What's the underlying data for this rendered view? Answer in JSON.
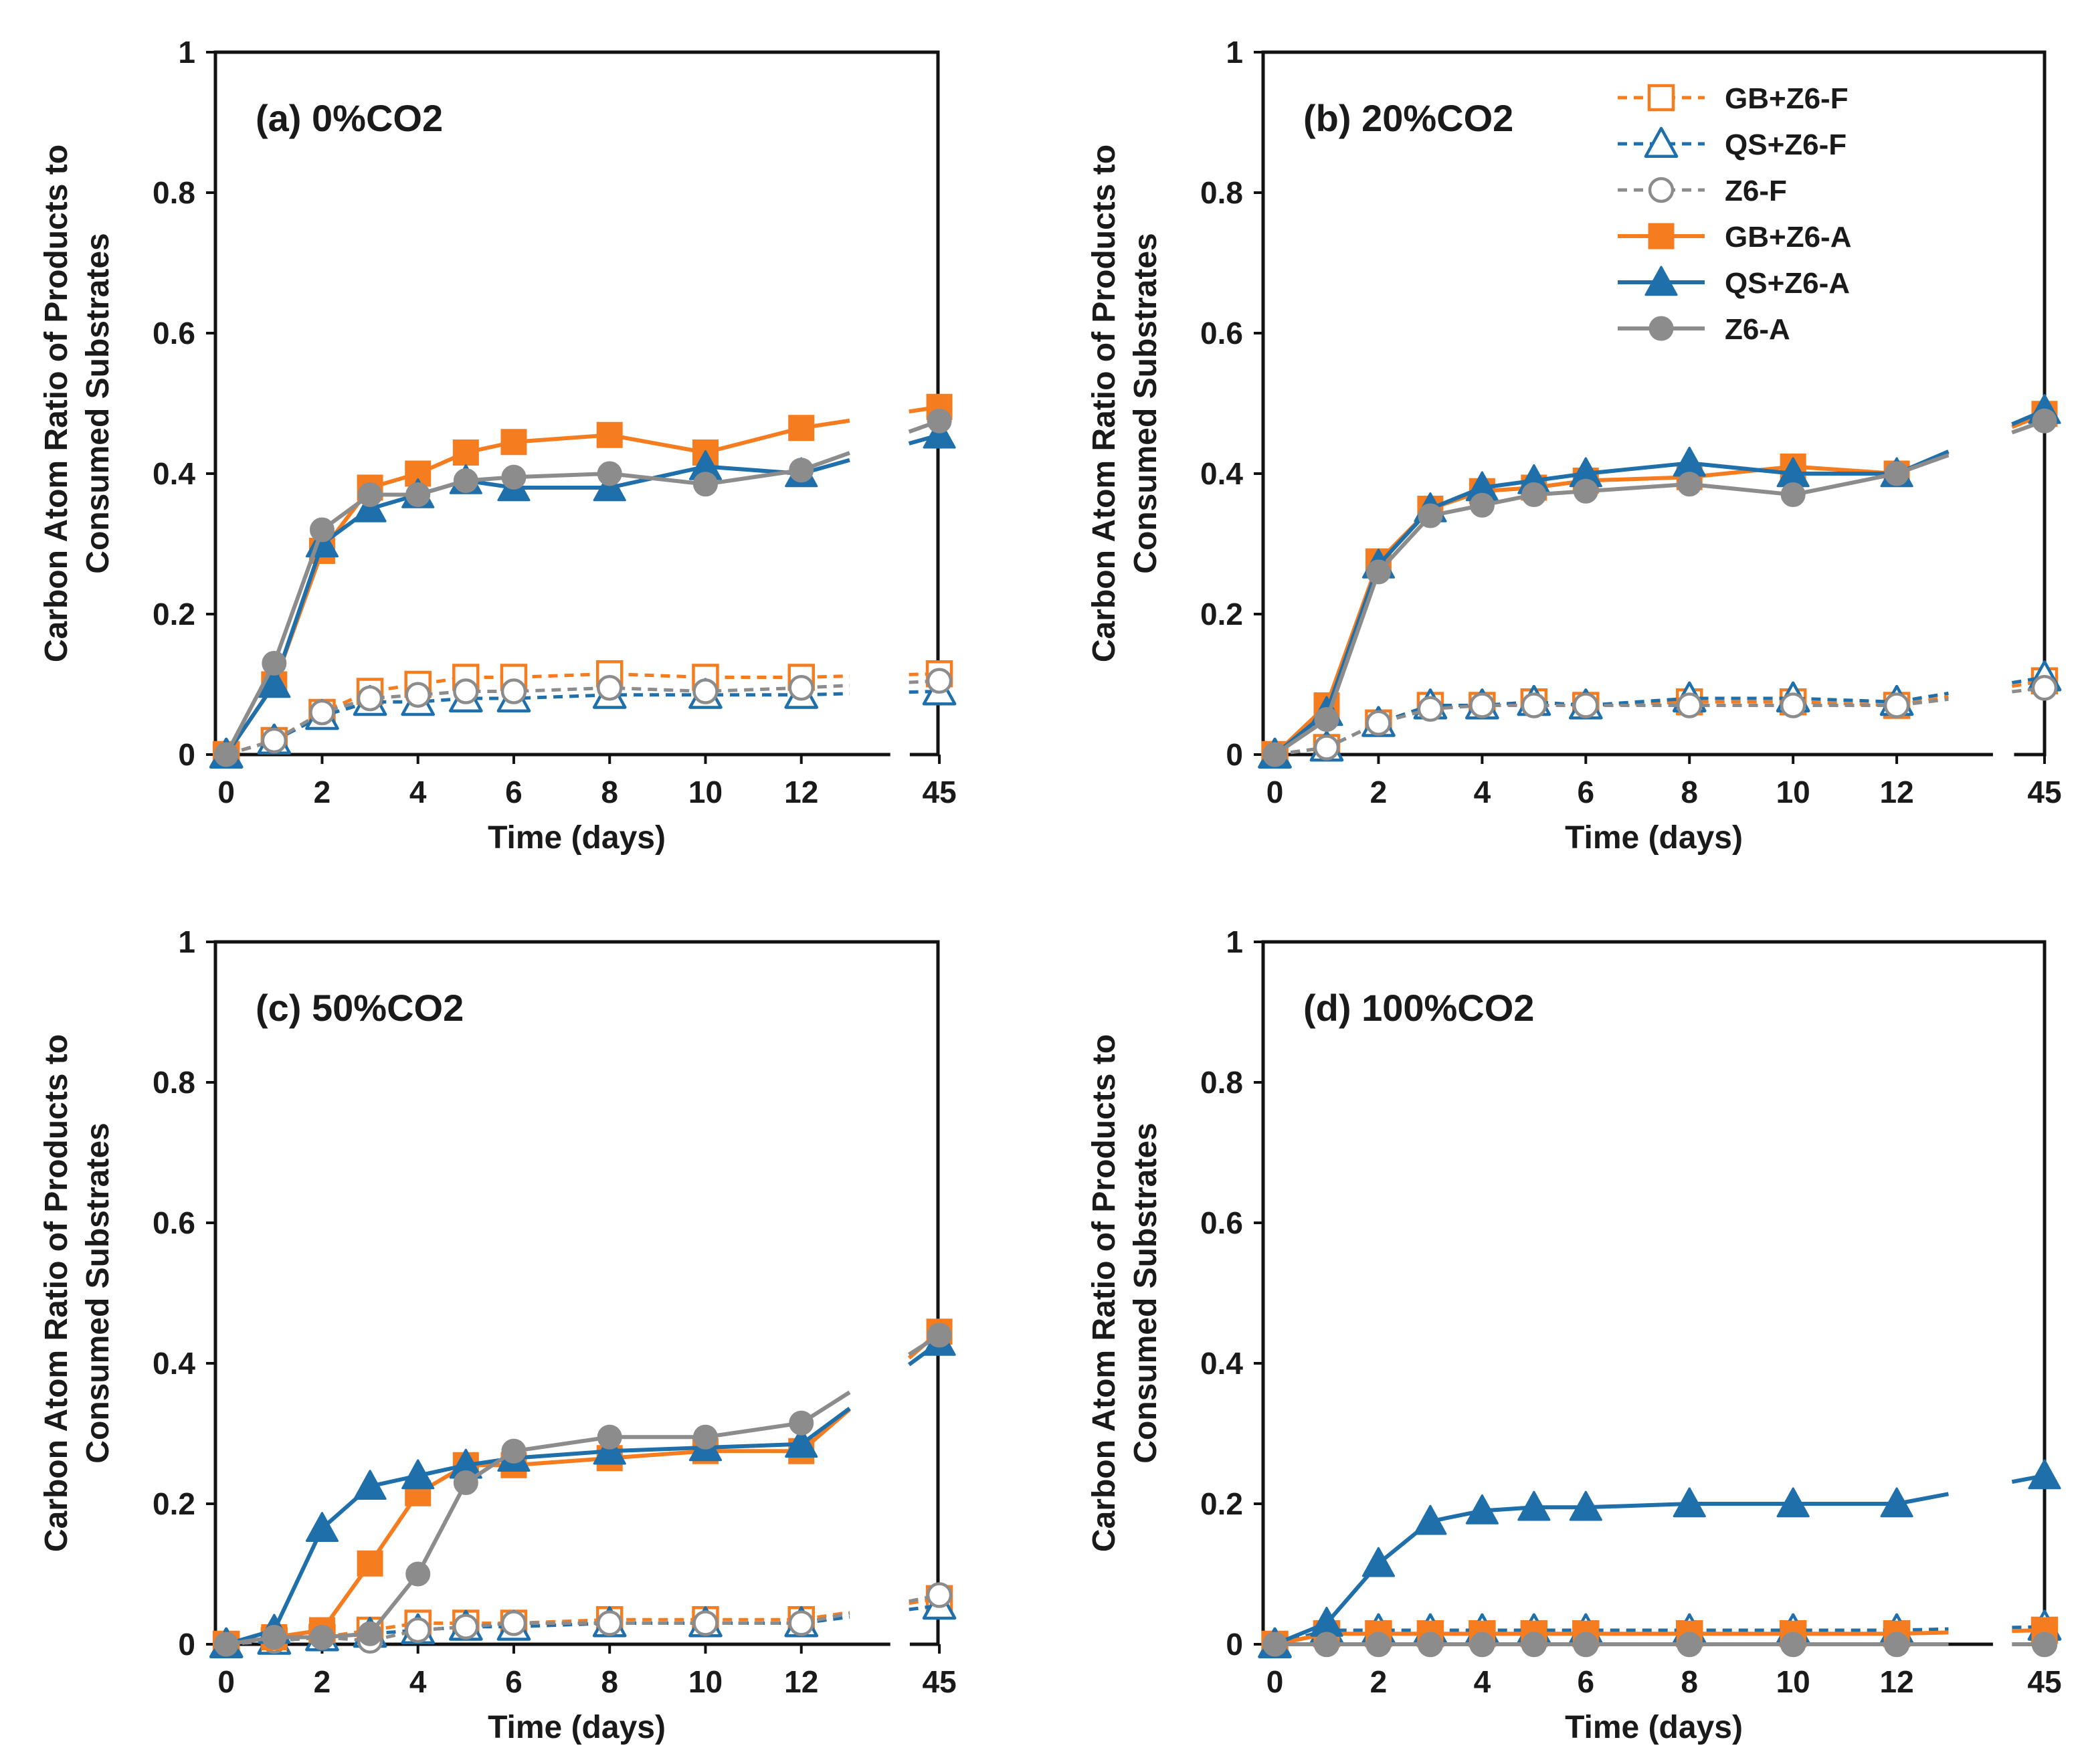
{
  "figure": {
    "colors": {
      "orange": "#F57D20",
      "blue": "#1F6FAA",
      "gray": "#8C8C8C"
    },
    "legend": [
      {
        "label": "GB+Z6-F",
        "series_key": "gbf",
        "color": "orange",
        "dashed": true,
        "marker": "square",
        "filled": false
      },
      {
        "label": "QS+Z6-F",
        "series_key": "qsf",
        "color": "blue",
        "dashed": true,
        "marker": "triangle",
        "filled": false
      },
      {
        "label": "Z6-F",
        "series_key": "z6f",
        "color": "gray",
        "dashed": true,
        "marker": "circle",
        "filled": false
      },
      {
        "label": "GB+Z6-A",
        "series_key": "gba",
        "color": "orange",
        "dashed": false,
        "marker": "square",
        "filled": true
      },
      {
        "label": "QS+Z6-A",
        "series_key": "qsa",
        "color": "blue",
        "dashed": false,
        "marker": "triangle",
        "filled": true
      },
      {
        "label": "Z6-A",
        "series_key": "z6a",
        "color": "gray",
        "dashed": false,
        "marker": "circle",
        "filled": true
      }
    ]
  },
  "chart_data": [
    {
      "type": "line",
      "title": "(a) 0%CO2",
      "xlabel": "Time (days)",
      "ylabel": [
        "Carbon Atom Ratio of Products to",
        "Consumed Substrates"
      ],
      "ylim": [
        0,
        1
      ],
      "yticks": [
        "0",
        "0.2",
        "0.4",
        "0.6",
        "0.8",
        "1"
      ],
      "x": [
        0,
        1,
        2,
        3,
        4,
        5,
        6,
        8,
        10,
        12,
        45
      ],
      "xticks": [
        "0",
        "2",
        "4",
        "6",
        "8",
        "10",
        "12",
        "45"
      ],
      "legend_position": "top-right",
      "series": [
        {
          "key": "gbf",
          "name": "GB+Z6-F",
          "values": [
            0,
            0.02,
            0.06,
            0.09,
            0.1,
            0.11,
            0.11,
            0.115,
            0.11,
            0.11,
            0.115
          ]
        },
        {
          "key": "qsf",
          "name": "QS+Z6-F",
          "values": [
            0,
            0.02,
            0.055,
            0.075,
            0.075,
            0.08,
            0.08,
            0.085,
            0.085,
            0.085,
            0.09
          ]
        },
        {
          "key": "z6f",
          "name": "Z6-F",
          "values": [
            0,
            0.02,
            0.06,
            0.08,
            0.085,
            0.09,
            0.09,
            0.095,
            0.09,
            0.095,
            0.105
          ]
        },
        {
          "key": "gba",
          "name": "GB+Z6-A",
          "values": [
            0,
            0.1,
            0.29,
            0.38,
            0.4,
            0.43,
            0.445,
            0.455,
            0.43,
            0.465,
            0.495
          ]
        },
        {
          "key": "qsa",
          "name": "QS+Z6-A",
          "values": [
            0,
            0.1,
            0.3,
            0.35,
            0.37,
            0.39,
            0.38,
            0.38,
            0.41,
            0.4,
            0.455
          ]
        },
        {
          "key": "z6a",
          "name": "Z6-A",
          "values": [
            0,
            0.13,
            0.32,
            0.37,
            0.37,
            0.39,
            0.395,
            0.4,
            0.385,
            0.405,
            0.475
          ]
        }
      ]
    },
    {
      "type": "line",
      "title": "(b) 20%CO2",
      "xlabel": "Time (days)",
      "ylabel": [
        "Carbon Atom Ratio of Products to",
        "Consumed Substrates"
      ],
      "ylim": [
        0,
        1
      ],
      "yticks": [
        "0",
        "0.2",
        "0.4",
        "0.6",
        "0.8",
        "1"
      ],
      "x": [
        0,
        1,
        2,
        3,
        4,
        5,
        6,
        8,
        10,
        12,
        45
      ],
      "xticks": [
        "0",
        "2",
        "4",
        "6",
        "8",
        "10",
        "12",
        "45"
      ],
      "legend_position": "top-right",
      "series": [
        {
          "key": "gbf",
          "name": "GB+Z6-F",
          "values": [
            0,
            0.01,
            0.045,
            0.07,
            0.07,
            0.075,
            0.07,
            0.075,
            0.075,
            0.07,
            0.105
          ]
        },
        {
          "key": "qsf",
          "name": "QS+Z6-F",
          "values": [
            0,
            0.01,
            0.045,
            0.07,
            0.07,
            0.075,
            0.07,
            0.08,
            0.08,
            0.075,
            0.11
          ]
        },
        {
          "key": "z6f",
          "name": "Z6-F",
          "values": [
            0,
            0.01,
            0.045,
            0.065,
            0.07,
            0.07,
            0.07,
            0.07,
            0.07,
            0.07,
            0.095
          ]
        },
        {
          "key": "gba",
          "name": "GB+Z6-A",
          "values": [
            0,
            0.07,
            0.275,
            0.35,
            0.375,
            0.38,
            0.39,
            0.395,
            0.41,
            0.4,
            0.485
          ]
        },
        {
          "key": "qsa",
          "name": "QS+Z6-A",
          "values": [
            0,
            0.06,
            0.27,
            0.35,
            0.38,
            0.39,
            0.4,
            0.415,
            0.4,
            0.4,
            0.49
          ]
        },
        {
          "key": "z6a",
          "name": "Z6-A",
          "values": [
            0,
            0.05,
            0.26,
            0.34,
            0.355,
            0.37,
            0.375,
            0.385,
            0.37,
            0.4,
            0.475
          ]
        }
      ]
    },
    {
      "type": "line",
      "title": "(c) 50%CO2",
      "xlabel": "Time (days)",
      "ylabel": [
        "Carbon Atom Ratio of Products to",
        "Consumed Substrates"
      ],
      "ylim": [
        0,
        1
      ],
      "yticks": [
        "0",
        "0.2",
        "0.4",
        "0.6",
        "0.8",
        "1"
      ],
      "x": [
        0,
        1,
        2,
        3,
        4,
        5,
        6,
        8,
        10,
        12,
        45
      ],
      "xticks": [
        "0",
        "2",
        "4",
        "6",
        "8",
        "10",
        "12",
        "45"
      ],
      "legend_position": "none",
      "series": [
        {
          "key": "gbf",
          "name": "GB+Z6-F",
          "values": [
            0,
            0.005,
            0.01,
            0.02,
            0.03,
            0.03,
            0.03,
            0.035,
            0.035,
            0.035,
            0.065
          ]
        },
        {
          "key": "qsf",
          "name": "QS+Z6-F",
          "values": [
            0,
            0.005,
            0.01,
            0.015,
            0.02,
            0.025,
            0.025,
            0.03,
            0.03,
            0.03,
            0.055
          ]
        },
        {
          "key": "z6f",
          "name": "Z6-F",
          "values": [
            0,
            0.005,
            0.01,
            0.005,
            0.02,
            0.025,
            0.03,
            0.03,
            0.03,
            0.03,
            0.07
          ]
        },
        {
          "key": "gba",
          "name": "GB+Z6-A",
          "values": [
            0,
            0.01,
            0.02,
            0.115,
            0.215,
            0.255,
            0.255,
            0.265,
            0.275,
            0.275,
            0.445
          ]
        },
        {
          "key": "qsa",
          "name": "QS+Z6-A",
          "values": [
            0,
            0.02,
            0.165,
            0.225,
            0.24,
            0.255,
            0.265,
            0.275,
            0.28,
            0.285,
            0.43
          ]
        },
        {
          "key": "z6a",
          "name": "Z6-A",
          "values": [
            0,
            0.01,
            0.01,
            0.015,
            0.1,
            0.23,
            0.275,
            0.295,
            0.295,
            0.315,
            0.44
          ]
        }
      ]
    },
    {
      "type": "line",
      "title": "(d) 100%CO2",
      "xlabel": "Time (days)",
      "ylabel": [
        "Carbon Atom Ratio of Products to",
        "Consumed Substrates"
      ],
      "ylim": [
        0,
        1
      ],
      "yticks": [
        "0",
        "0.2",
        "0.4",
        "0.6",
        "0.8",
        "1"
      ],
      "x": [
        0,
        1,
        2,
        3,
        4,
        5,
        6,
        8,
        10,
        12,
        45
      ],
      "xticks": [
        "0",
        "2",
        "4",
        "6",
        "8",
        "10",
        "12",
        "45"
      ],
      "legend_position": "none",
      "series": [
        {
          "key": "gbf",
          "name": "GB+Z6-F",
          "values": [
            0,
            0.015,
            0.015,
            0.015,
            0.015,
            0.015,
            0.015,
            0.015,
            0.015,
            0.015,
            0.02
          ]
        },
        {
          "key": "qsf",
          "name": "QS+Z6-F",
          "values": [
            0,
            0.02,
            0.02,
            0.02,
            0.02,
            0.02,
            0.02,
            0.02,
            0.02,
            0.02,
            0.025
          ]
        },
        {
          "key": "z6f",
          "name": "Z6-F",
          "values": [
            0,
            0.0,
            0.0,
            0.0,
            0.0,
            0.0,
            0.0,
            0.0,
            0.0,
            0.0,
            0.0
          ]
        },
        {
          "key": "gba",
          "name": "GB+Z6-A",
          "values": [
            0,
            0.015,
            0.015,
            0.015,
            0.015,
            0.015,
            0.015,
            0.015,
            0.015,
            0.015,
            0.02
          ]
        },
        {
          "key": "qsa",
          "name": "QS+Z6-A",
          "values": [
            0,
            0.03,
            0.115,
            0.175,
            0.19,
            0.195,
            0.195,
            0.2,
            0.2,
            0.2,
            0.24
          ]
        },
        {
          "key": "z6a",
          "name": "Z6-A",
          "values": [
            0,
            0.0,
            0.0,
            0.0,
            0.0,
            0.0,
            0.0,
            0.0,
            0.0,
            0.0,
            0.0
          ]
        }
      ]
    }
  ]
}
